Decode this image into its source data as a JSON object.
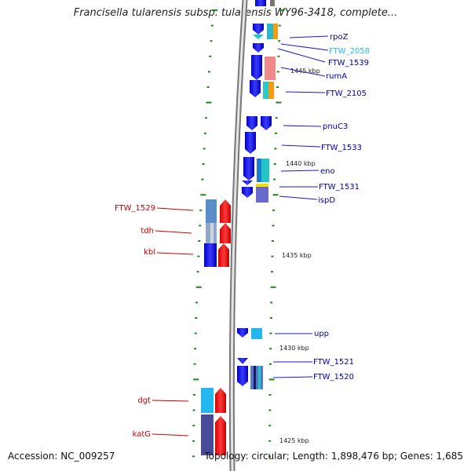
{
  "title": "Francisella tularensis subsp. tularensis WY96-3418, complete...",
  "footer": {
    "accession": "Accession: NC_009257",
    "summary": "Topology: circular; Length: 1,898,476 bp; Genes: 1,685"
  },
  "scale_labels": [
    "1445 kbp",
    "1440 kbp",
    "1435 kbp",
    "1430 kbp",
    "1425 kbp"
  ],
  "colors": {
    "strand_forward": "#1a1aee",
    "strand_reverse": "#ee1a1a",
    "label_blue": "#0000aa",
    "label_cyan": "#22bbee",
    "label_red": "#cc0000",
    "tick_green": "#1a8a1a",
    "backbone": "#888888"
  },
  "genes_right": [
    {
      "label": "rpoZ",
      "color": "#0000aa"
    },
    {
      "label": "FTW_2058",
      "color": "#22bbee"
    },
    {
      "label": "FTW_1539",
      "color": "#0000aa"
    },
    {
      "label": "rumA",
      "color": "#0000aa"
    },
    {
      "label": "FTW_2105",
      "color": "#0000aa"
    },
    {
      "label": "pnuC3",
      "color": "#0000aa"
    },
    {
      "label": "FTW_1533",
      "color": "#0000aa"
    },
    {
      "label": "eno",
      "color": "#0000aa"
    },
    {
      "label": "FTW_1531",
      "color": "#0000aa"
    },
    {
      "label": "ispD",
      "color": "#0000aa"
    },
    {
      "label": "upp",
      "color": "#0000aa"
    },
    {
      "label": "FTW_1521",
      "color": "#0000aa"
    },
    {
      "label": "FTW_1520",
      "color": "#0000aa"
    }
  ],
  "genes_left": [
    {
      "label": "FTW_1529",
      "color": "#cc0000"
    },
    {
      "label": "tdh",
      "color": "#cc0000"
    },
    {
      "label": "kbl",
      "color": "#cc0000"
    },
    {
      "label": "dgt",
      "color": "#cc0000"
    },
    {
      "label": "katG",
      "color": "#cc0000"
    }
  ]
}
